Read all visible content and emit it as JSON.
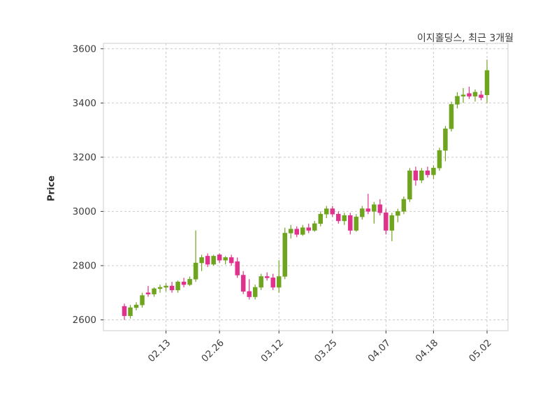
{
  "chart_data": {
    "type": "candlestick",
    "title": "이지홀딩스, 최근 3개월",
    "ylabel": "Price",
    "y_ticks": [
      2600,
      2800,
      3000,
      3200,
      3400,
      3600
    ],
    "ylim": [
      2560,
      3620
    ],
    "x_tick_labels": [
      "02.13",
      "02.26",
      "03.12",
      "03.25",
      "04.07",
      "04.18",
      "05.02"
    ],
    "x_tick_indices": [
      7,
      16,
      26,
      35,
      44,
      52,
      61
    ],
    "grid": "dashed",
    "legend": "none",
    "colors": {
      "up": "#6fa41f",
      "down": "#e0318c",
      "grid": "#c9c9c9",
      "spine": "#cccccc",
      "axis_text": "#3d3d3d"
    },
    "candles": [
      [
        2650,
        2660,
        2600,
        2615
      ],
      [
        2615,
        2655,
        2605,
        2645
      ],
      [
        2645,
        2665,
        2635,
        2655
      ],
      [
        2655,
        2700,
        2645,
        2690
      ],
      [
        2700,
        2725,
        2685,
        2695
      ],
      [
        2695,
        2720,
        2685,
        2715
      ],
      [
        2715,
        2730,
        2700,
        2720
      ],
      [
        2720,
        2735,
        2705,
        2725
      ],
      [
        2725,
        2740,
        2700,
        2710
      ],
      [
        2710,
        2745,
        2700,
        2740
      ],
      [
        2740,
        2755,
        2720,
        2730
      ],
      [
        2730,
        2760,
        2725,
        2750
      ],
      [
        2750,
        2930,
        2740,
        2810
      ],
      [
        2810,
        2840,
        2780,
        2830
      ],
      [
        2835,
        2845,
        2795,
        2805
      ],
      [
        2805,
        2840,
        2800,
        2835
      ],
      [
        2840,
        2845,
        2810,
        2820
      ],
      [
        2820,
        2835,
        2805,
        2830
      ],
      [
        2830,
        2840,
        2800,
        2810
      ],
      [
        2815,
        2830,
        2755,
        2765
      ],
      [
        2765,
        2780,
        2695,
        2705
      ],
      [
        2705,
        2750,
        2675,
        2685
      ],
      [
        2685,
        2730,
        2675,
        2720
      ],
      [
        2720,
        2770,
        2710,
        2760
      ],
      [
        2760,
        2775,
        2745,
        2755
      ],
      [
        2755,
        2770,
        2710,
        2720
      ],
      [
        2720,
        2820,
        2700,
        2760
      ],
      [
        2760,
        2940,
        2750,
        2920
      ],
      [
        2920,
        2950,
        2900,
        2935
      ],
      [
        2935,
        2945,
        2905,
        2915
      ],
      [
        2915,
        2950,
        2910,
        2940
      ],
      [
        2940,
        2955,
        2920,
        2930
      ],
      [
        2930,
        2965,
        2925,
        2955
      ],
      [
        2955,
        3000,
        2945,
        2990
      ],
      [
        2990,
        3020,
        2975,
        3010
      ],
      [
        3010,
        3020,
        2980,
        2990
      ],
      [
        2990,
        3000,
        2955,
        2965
      ],
      [
        2965,
        2995,
        2950,
        2985
      ],
      [
        2985,
        2995,
        2915,
        2930
      ],
      [
        2930,
        2990,
        2925,
        2980
      ],
      [
        2980,
        3020,
        2970,
        3010
      ],
      [
        3010,
        3065,
        2990,
        3000
      ],
      [
        3000,
        3035,
        2955,
        3025
      ],
      [
        3025,
        3045,
        2985,
        2995
      ],
      [
        2995,
        3010,
        2915,
        2930
      ],
      [
        2930,
        2995,
        2890,
        2985
      ],
      [
        2985,
        3010,
        2960,
        3000
      ],
      [
        3000,
        3055,
        2990,
        3045
      ],
      [
        3045,
        3160,
        3035,
        3150
      ],
      [
        3150,
        3165,
        3095,
        3115
      ],
      [
        3115,
        3160,
        3105,
        3150
      ],
      [
        3150,
        3165,
        3125,
        3135
      ],
      [
        3135,
        3170,
        3120,
        3160
      ],
      [
        3160,
        3235,
        3150,
        3225
      ],
      [
        3225,
        3315,
        3185,
        3305
      ],
      [
        3305,
        3405,
        3295,
        3395
      ],
      [
        3395,
        3440,
        3380,
        3425
      ],
      [
        3425,
        3455,
        3400,
        3430
      ],
      [
        3435,
        3460,
        3415,
        3425
      ],
      [
        3425,
        3450,
        3405,
        3440
      ],
      [
        3430,
        3445,
        3410,
        3420
      ],
      [
        3430,
        3560,
        3400,
        3520
      ]
    ]
  }
}
